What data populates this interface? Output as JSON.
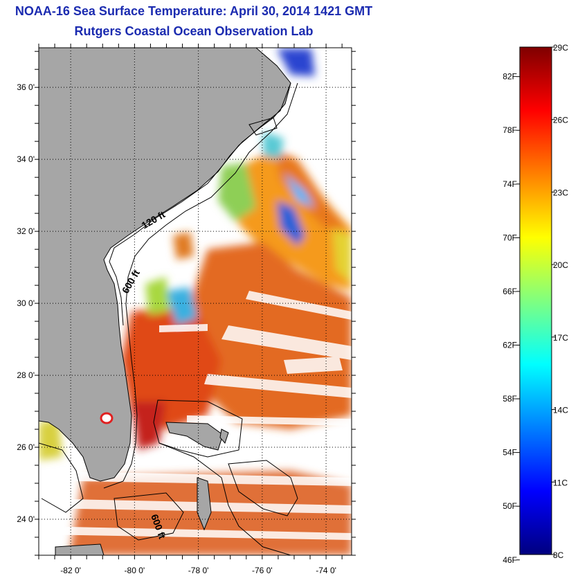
{
  "title": "NOAA-16 Sea Surface Temperature:  April 30, 2014 1421 GMT",
  "subtitle": "Rutgers Coastal Ocean Observation Lab",
  "map": {
    "lat_labels": [
      "36 0'",
      "34 0'",
      "32 0'",
      "30 0'",
      "28 0'",
      "26 0'",
      "24 0'"
    ],
    "lat_values": [
      36,
      34,
      32,
      30,
      28,
      26,
      24
    ],
    "lon_labels": [
      "-82 0'",
      "-80 0'",
      "-78 0'",
      "-76 0'",
      "-74 0'"
    ],
    "lon_values": [
      -82,
      -80,
      -78,
      -76,
      -74
    ],
    "lat_range": [
      23,
      37.1
    ],
    "lon_range": [
      -83,
      -73.2
    ],
    "contour_labels": [
      "120 ft",
      "600 ft",
      "600 ft"
    ],
    "land_color": "#a6a6a6"
  },
  "colorbar": {
    "f_labels": [
      "82F",
      "78F",
      "74F",
      "70F",
      "66F",
      "62F",
      "58F",
      "54F",
      "50F",
      "46F"
    ],
    "c_labels": [
      "29C",
      "26C",
      "23C",
      "20C",
      "17C",
      "14C",
      "11C",
      "8C"
    ],
    "min_c": 8,
    "max_c": 29,
    "colormap": "jet"
  }
}
